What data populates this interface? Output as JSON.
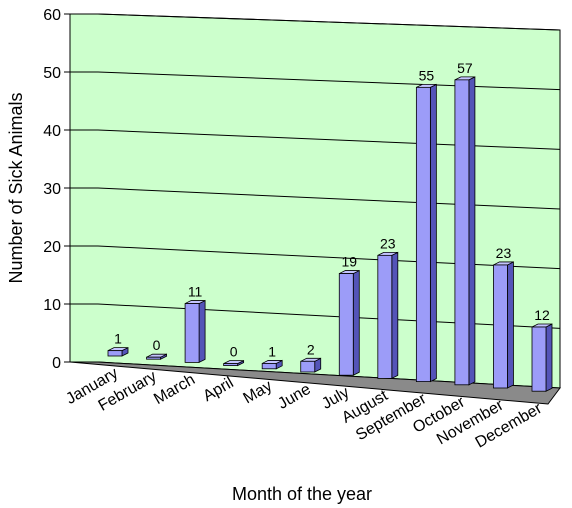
{
  "chart_data": {
    "type": "bar",
    "title": "",
    "xlabel": "Month of the year",
    "ylabel": "Number of Sick Animals",
    "categories": [
      "January",
      "February",
      "March",
      "April",
      "May",
      "June",
      "July",
      "August",
      "September",
      "October",
      "November",
      "December"
    ],
    "values": [
      1,
      0,
      11,
      0,
      1,
      2,
      19,
      23,
      55,
      57,
      23,
      12
    ],
    "ylim": [
      0,
      60
    ],
    "yticks": [
      0,
      10,
      20,
      30,
      40,
      50,
      60
    ],
    "grid": true,
    "legend": "none",
    "colors": {
      "bar_front": "#9c9cf8",
      "bar_side": "#5454b8",
      "bar_top": "#c4c4ff",
      "wall": "#ccffcc",
      "floor": "#8a8a8a"
    }
  }
}
